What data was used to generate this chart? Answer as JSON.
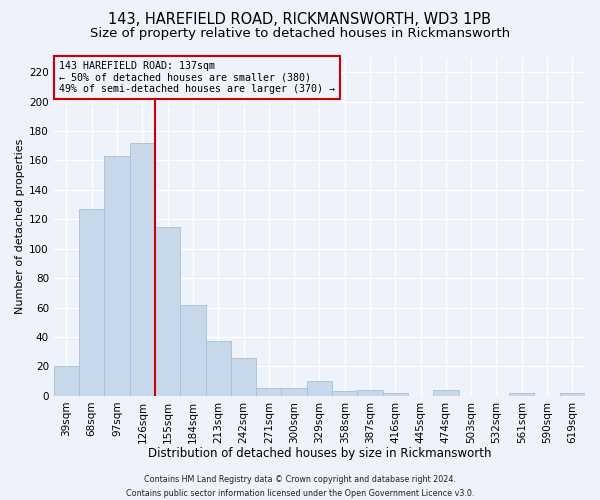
{
  "title_line1": "143, HAREFIELD ROAD, RICKMANSWORTH, WD3 1PB",
  "title_line2": "Size of property relative to detached houses in Rickmansworth",
  "xlabel": "Distribution of detached houses by size in Rickmansworth",
  "ylabel": "Number of detached properties",
  "bar_labels": [
    "39sqm",
    "68sqm",
    "97sqm",
    "126sqm",
    "155sqm",
    "184sqm",
    "213sqm",
    "242sqm",
    "271sqm",
    "300sqm",
    "329sqm",
    "358sqm",
    "387sqm",
    "416sqm",
    "445sqm",
    "474sqm",
    "503sqm",
    "532sqm",
    "561sqm",
    "590sqm",
    "619sqm"
  ],
  "bar_values": [
    20,
    127,
    163,
    172,
    115,
    62,
    37,
    26,
    5,
    5,
    10,
    3,
    4,
    2,
    0,
    4,
    0,
    0,
    2,
    0,
    2
  ],
  "bar_color": "#c6d8ea",
  "bar_edge_color": "#a8bfd4",
  "ylim": [
    0,
    230
  ],
  "yticks": [
    0,
    20,
    40,
    60,
    80,
    100,
    120,
    140,
    160,
    180,
    200,
    220
  ],
  "property_line_x": 3.5,
  "vline_color": "#cc0000",
  "annotation_text_line1": "143 HAREFIELD ROAD: 137sqm",
  "annotation_text_line2": "← 50% of detached houses are smaller (380)",
  "annotation_text_line3": "49% of semi-detached houses are larger (370) →",
  "annotation_box_color": "#cc0000",
  "footnote1": "Contains HM Land Registry data © Crown copyright and database right 2024.",
  "footnote2": "Contains public sector information licensed under the Open Government Licence v3.0.",
  "bg_color": "#eef2fb",
  "grid_color": "#ffffff",
  "title1_fontsize": 10.5,
  "title2_fontsize": 9.5,
  "xlabel_fontsize": 8.5,
  "ylabel_fontsize": 8,
  "tick_fontsize": 7.5,
  "footnote_fontsize": 5.8
}
